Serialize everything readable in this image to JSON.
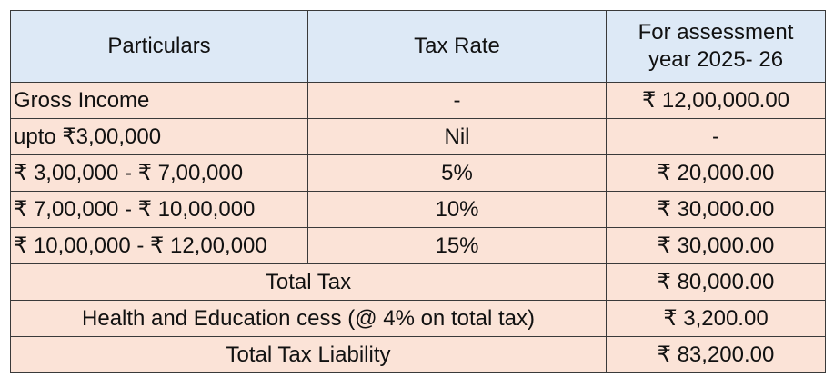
{
  "table": {
    "header": [
      "Particulars",
      "Tax Rate",
      "For assessment year 2025- 26"
    ],
    "rows": [
      [
        "Gross Income",
        "-",
        "₹ 12,00,000.00"
      ],
      [
        "upto ₹3,00,000",
        "Nil",
        "-"
      ],
      [
        "₹ 3,00,000 - ₹ 7,00,000",
        "5%",
        "₹ 20,000.00"
      ],
      [
        "₹ 7,00,000 - ₹ 10,00,000",
        "10%",
        "₹ 30,000.00"
      ],
      [
        "₹ 10,00,000 - ₹ 12,00,000",
        "15%",
        "₹ 30,000.00"
      ],
      [
        "Total Tax",
        "₹ 80,000.00"
      ],
      [
        "Health and Education cess (@ 4% on total tax)",
        "₹ 3,200.00"
      ],
      [
        "Total Tax Liability",
        "₹ 83,200.00"
      ]
    ]
  }
}
